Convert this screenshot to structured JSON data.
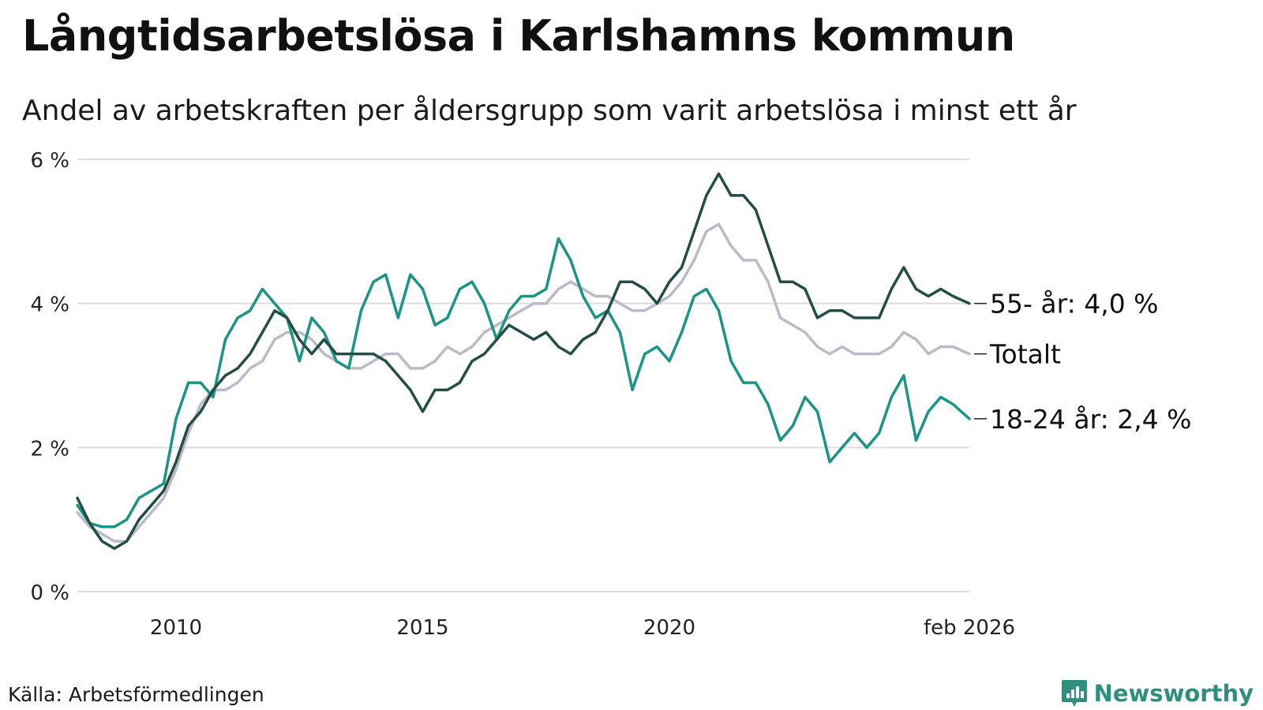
{
  "title": "Långtidsarbetslösa i Karlshamns kommun",
  "subtitle": "Andel av arbetskraften per åldersgrupp som varit arbetslösa i minst ett år",
  "source": "Källa: Arbetsförmedlingen",
  "brand": {
    "name": "Newsworthy",
    "icon": "bar-chart-badge-icon",
    "color": "#2f8f7e"
  },
  "chart_data": {
    "type": "line",
    "xlabel": "",
    "ylabel": "",
    "ylim": [
      0,
      6
    ],
    "xlim": [
      2008.0,
      2026.08
    ],
    "grid": true,
    "y_ticks": [
      {
        "value": 0,
        "label": "0 %"
      },
      {
        "value": 2,
        "label": "2 %"
      },
      {
        "value": 4,
        "label": "4 %"
      },
      {
        "value": 6,
        "label": "6 %"
      }
    ],
    "x_ticks": [
      {
        "value": 2010,
        "label": "2010"
      },
      {
        "value": 2015,
        "label": "2015"
      },
      {
        "value": 2020,
        "label": "2020"
      },
      {
        "value": 2026.08,
        "label": "feb 2026"
      }
    ],
    "series": [
      {
        "name": "Totalt",
        "label": "Totalt",
        "color": "#bdb9c9",
        "points": [
          [
            2008.0,
            1.1
          ],
          [
            2008.25,
            0.9
          ],
          [
            2008.5,
            0.8
          ],
          [
            2008.75,
            0.7
          ],
          [
            2009.0,
            0.7
          ],
          [
            2009.25,
            0.9
          ],
          [
            2009.5,
            1.1
          ],
          [
            2009.75,
            1.3
          ],
          [
            2010.0,
            1.7
          ],
          [
            2010.25,
            2.2
          ],
          [
            2010.5,
            2.6
          ],
          [
            2010.75,
            2.8
          ],
          [
            2011.0,
            2.8
          ],
          [
            2011.25,
            2.9
          ],
          [
            2011.5,
            3.1
          ],
          [
            2011.75,
            3.2
          ],
          [
            2012.0,
            3.5
          ],
          [
            2012.25,
            3.6
          ],
          [
            2012.5,
            3.6
          ],
          [
            2012.75,
            3.5
          ],
          [
            2013.0,
            3.3
          ],
          [
            2013.25,
            3.2
          ],
          [
            2013.5,
            3.1
          ],
          [
            2013.75,
            3.1
          ],
          [
            2014.0,
            3.2
          ],
          [
            2014.25,
            3.3
          ],
          [
            2014.5,
            3.3
          ],
          [
            2014.75,
            3.1
          ],
          [
            2015.0,
            3.1
          ],
          [
            2015.25,
            3.2
          ],
          [
            2015.5,
            3.4
          ],
          [
            2015.75,
            3.3
          ],
          [
            2016.0,
            3.4
          ],
          [
            2016.25,
            3.6
          ],
          [
            2016.5,
            3.7
          ],
          [
            2016.75,
            3.8
          ],
          [
            2017.0,
            3.9
          ],
          [
            2017.25,
            4.0
          ],
          [
            2017.5,
            4.0
          ],
          [
            2017.75,
            4.2
          ],
          [
            2018.0,
            4.3
          ],
          [
            2018.25,
            4.2
          ],
          [
            2018.5,
            4.1
          ],
          [
            2018.75,
            4.1
          ],
          [
            2019.0,
            4.0
          ],
          [
            2019.25,
            3.9
          ],
          [
            2019.5,
            3.9
          ],
          [
            2019.75,
            4.0
          ],
          [
            2020.0,
            4.1
          ],
          [
            2020.25,
            4.3
          ],
          [
            2020.5,
            4.6
          ],
          [
            2020.75,
            5.0
          ],
          [
            2021.0,
            5.1
          ],
          [
            2021.25,
            4.8
          ],
          [
            2021.5,
            4.6
          ],
          [
            2021.75,
            4.6
          ],
          [
            2022.0,
            4.3
          ],
          [
            2022.25,
            3.8
          ],
          [
            2022.5,
            3.7
          ],
          [
            2022.75,
            3.6
          ],
          [
            2023.0,
            3.4
          ],
          [
            2023.25,
            3.3
          ],
          [
            2023.5,
            3.4
          ],
          [
            2023.75,
            3.3
          ],
          [
            2024.0,
            3.3
          ],
          [
            2024.25,
            3.3
          ],
          [
            2024.5,
            3.4
          ],
          [
            2024.75,
            3.6
          ],
          [
            2025.0,
            3.5
          ],
          [
            2025.25,
            3.3
          ],
          [
            2025.5,
            3.4
          ],
          [
            2025.75,
            3.4
          ],
          [
            2026.08,
            3.3
          ]
        ]
      },
      {
        "name": "18-24 år",
        "label": "18-24 år: 2,4 %",
        "color": "#1b9484",
        "points": [
          [
            2008.0,
            1.2
          ],
          [
            2008.25,
            0.95
          ],
          [
            2008.5,
            0.9
          ],
          [
            2008.75,
            0.9
          ],
          [
            2009.0,
            1.0
          ],
          [
            2009.25,
            1.3
          ],
          [
            2009.5,
            1.4
          ],
          [
            2009.75,
            1.5
          ],
          [
            2010.0,
            2.4
          ],
          [
            2010.25,
            2.9
          ],
          [
            2010.5,
            2.9
          ],
          [
            2010.75,
            2.7
          ],
          [
            2011.0,
            3.5
          ],
          [
            2011.25,
            3.8
          ],
          [
            2011.5,
            3.9
          ],
          [
            2011.75,
            4.2
          ],
          [
            2012.0,
            4.0
          ],
          [
            2012.25,
            3.8
          ],
          [
            2012.5,
            3.2
          ],
          [
            2012.75,
            3.8
          ],
          [
            2013.0,
            3.6
          ],
          [
            2013.25,
            3.2
          ],
          [
            2013.5,
            3.1
          ],
          [
            2013.75,
            3.9
          ],
          [
            2014.0,
            4.3
          ],
          [
            2014.25,
            4.4
          ],
          [
            2014.5,
            3.8
          ],
          [
            2014.75,
            4.4
          ],
          [
            2015.0,
            4.2
          ],
          [
            2015.25,
            3.7
          ],
          [
            2015.5,
            3.8
          ],
          [
            2015.75,
            4.2
          ],
          [
            2016.0,
            4.3
          ],
          [
            2016.25,
            4.0
          ],
          [
            2016.5,
            3.5
          ],
          [
            2016.75,
            3.9
          ],
          [
            2017.0,
            4.1
          ],
          [
            2017.25,
            4.1
          ],
          [
            2017.5,
            4.2
          ],
          [
            2017.75,
            4.9
          ],
          [
            2018.0,
            4.6
          ],
          [
            2018.25,
            4.1
          ],
          [
            2018.5,
            3.8
          ],
          [
            2018.75,
            3.9
          ],
          [
            2019.0,
            3.6
          ],
          [
            2019.25,
            2.8
          ],
          [
            2019.5,
            3.3
          ],
          [
            2019.75,
            3.4
          ],
          [
            2020.0,
            3.2
          ],
          [
            2020.25,
            3.6
          ],
          [
            2020.5,
            4.1
          ],
          [
            2020.75,
            4.2
          ],
          [
            2021.0,
            3.9
          ],
          [
            2021.25,
            3.2
          ],
          [
            2021.5,
            2.9
          ],
          [
            2021.75,
            2.9
          ],
          [
            2022.0,
            2.6
          ],
          [
            2022.25,
            2.1
          ],
          [
            2022.5,
            2.3
          ],
          [
            2022.75,
            2.7
          ],
          [
            2023.0,
            2.5
          ],
          [
            2023.25,
            1.8
          ],
          [
            2023.5,
            2.0
          ],
          [
            2023.75,
            2.2
          ],
          [
            2024.0,
            2.0
          ],
          [
            2024.25,
            2.2
          ],
          [
            2024.5,
            2.7
          ],
          [
            2024.75,
            3.0
          ],
          [
            2025.0,
            2.1
          ],
          [
            2025.25,
            2.5
          ],
          [
            2025.5,
            2.7
          ],
          [
            2025.75,
            2.6
          ],
          [
            2026.08,
            2.4
          ]
        ]
      },
      {
        "name": "55- år",
        "label": "55- år: 4,0 %",
        "color": "#234d45",
        "points": [
          [
            2008.0,
            1.3
          ],
          [
            2008.25,
            0.95
          ],
          [
            2008.5,
            0.7
          ],
          [
            2008.75,
            0.6
          ],
          [
            2009.0,
            0.7
          ],
          [
            2009.25,
            1.0
          ],
          [
            2009.5,
            1.2
          ],
          [
            2009.75,
            1.4
          ],
          [
            2010.0,
            1.8
          ],
          [
            2010.25,
            2.3
          ],
          [
            2010.5,
            2.5
          ],
          [
            2010.75,
            2.8
          ],
          [
            2011.0,
            3.0
          ],
          [
            2011.25,
            3.1
          ],
          [
            2011.5,
            3.3
          ],
          [
            2011.75,
            3.6
          ],
          [
            2012.0,
            3.9
          ],
          [
            2012.25,
            3.8
          ],
          [
            2012.5,
            3.5
          ],
          [
            2012.75,
            3.3
          ],
          [
            2013.0,
            3.5
          ],
          [
            2013.25,
            3.3
          ],
          [
            2013.5,
            3.3
          ],
          [
            2013.75,
            3.3
          ],
          [
            2014.0,
            3.3
          ],
          [
            2014.25,
            3.2
          ],
          [
            2014.5,
            3.0
          ],
          [
            2014.75,
            2.8
          ],
          [
            2015.0,
            2.5
          ],
          [
            2015.25,
            2.8
          ],
          [
            2015.5,
            2.8
          ],
          [
            2015.75,
            2.9
          ],
          [
            2016.0,
            3.2
          ],
          [
            2016.25,
            3.3
          ],
          [
            2016.5,
            3.5
          ],
          [
            2016.75,
            3.7
          ],
          [
            2017.0,
            3.6
          ],
          [
            2017.25,
            3.5
          ],
          [
            2017.5,
            3.6
          ],
          [
            2017.75,
            3.4
          ],
          [
            2018.0,
            3.3
          ],
          [
            2018.25,
            3.5
          ],
          [
            2018.5,
            3.6
          ],
          [
            2018.75,
            3.9
          ],
          [
            2019.0,
            4.3
          ],
          [
            2019.25,
            4.3
          ],
          [
            2019.5,
            4.2
          ],
          [
            2019.75,
            4.0
          ],
          [
            2020.0,
            4.3
          ],
          [
            2020.25,
            4.5
          ],
          [
            2020.5,
            5.0
          ],
          [
            2020.75,
            5.5
          ],
          [
            2021.0,
            5.8
          ],
          [
            2021.25,
            5.5
          ],
          [
            2021.5,
            5.5
          ],
          [
            2021.75,
            5.3
          ],
          [
            2022.0,
            4.8
          ],
          [
            2022.25,
            4.3
          ],
          [
            2022.5,
            4.3
          ],
          [
            2022.75,
            4.2
          ],
          [
            2023.0,
            3.8
          ],
          [
            2023.25,
            3.9
          ],
          [
            2023.5,
            3.9
          ],
          [
            2023.75,
            3.8
          ],
          [
            2024.0,
            3.8
          ],
          [
            2024.25,
            3.8
          ],
          [
            2024.5,
            4.2
          ],
          [
            2024.75,
            4.5
          ],
          [
            2025.0,
            4.2
          ],
          [
            2025.25,
            4.1
          ],
          [
            2025.5,
            4.2
          ],
          [
            2025.75,
            4.1
          ],
          [
            2026.08,
            4.0
          ]
        ]
      }
    ]
  }
}
